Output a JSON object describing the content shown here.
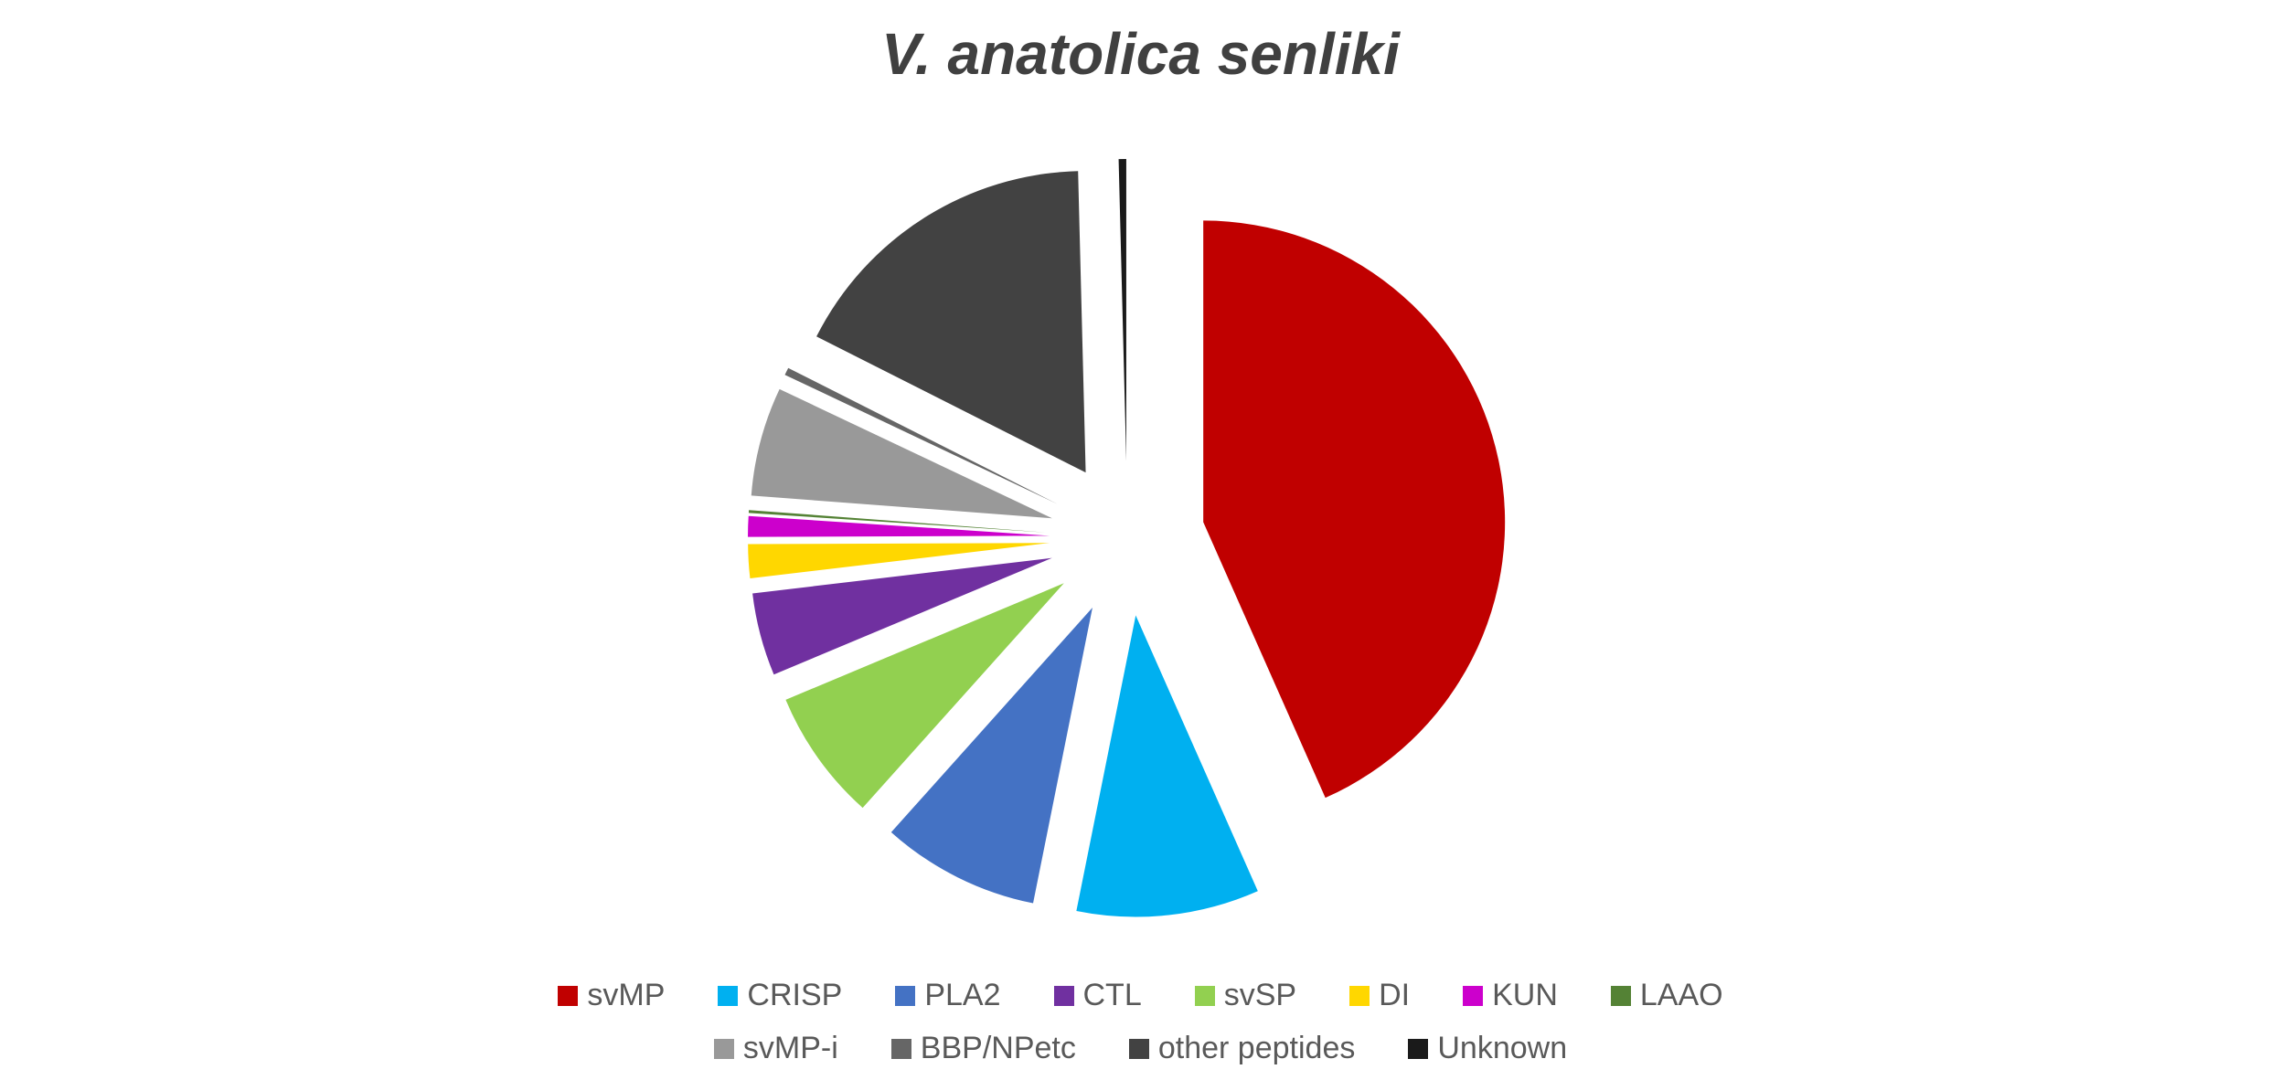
{
  "chart_data": {
    "type": "pie",
    "title": "V. anatolica senliki",
    "exploded": true,
    "legend_position": "bottom",
    "slices": [
      {
        "label": "svMP",
        "value": 43.0,
        "color": "#C00000"
      },
      {
        "label": "CRISP",
        "value": 9.7,
        "color": "#00B0F0"
      },
      {
        "label": "PLA2",
        "value": 8.4,
        "color": "#4472C4"
      },
      {
        "label": "CTL",
        "value": 4.4,
        "color": "#7030A0"
      },
      {
        "label": "svSP",
        "value": 7.0,
        "color": "#92D050"
      },
      {
        "label": "DI",
        "value": 1.8,
        "color": "#FFD700"
      },
      {
        "label": "KUN",
        "value": 1.1,
        "color": "#CC00CC"
      },
      {
        "label": "LAAO",
        "value": 0.15,
        "color": "#548235"
      },
      {
        "label": "svMP-i",
        "value": 5.8,
        "color": "#999999"
      },
      {
        "label": "BBP/NPetc",
        "value": 0.4,
        "color": "#666666"
      },
      {
        "label": "other peptides",
        "value": 17.0,
        "color": "#424242"
      },
      {
        "label": "Unknown",
        "value": 0.4,
        "color": "#1A1A1A"
      }
    ],
    "pie_order": [
      "svMP",
      "CRISP",
      "PLA2",
      "svSP",
      "CTL",
      "DI",
      "KUN",
      "LAAO",
      "svMP-i",
      "BBP/NPetc",
      "other peptides",
      "Unknown"
    ]
  }
}
